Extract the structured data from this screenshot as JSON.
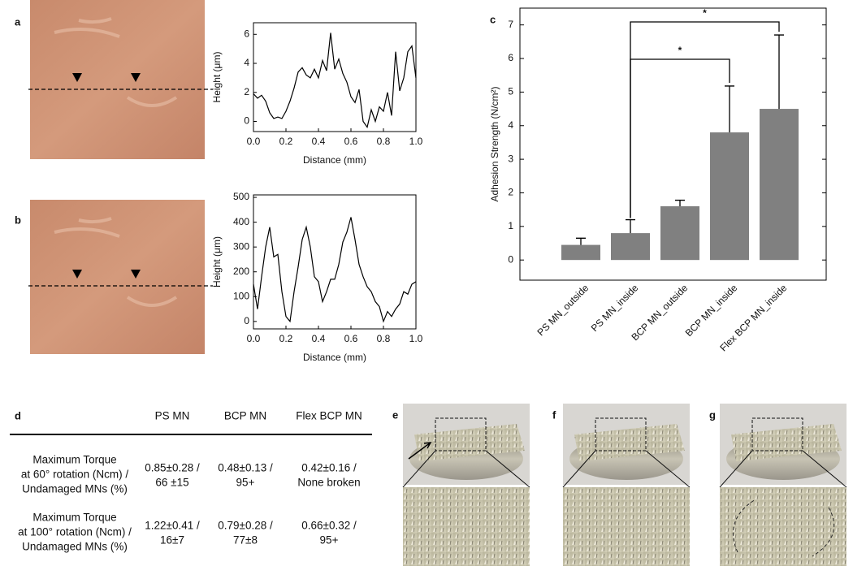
{
  "chart_data": [
    {
      "type": "line",
      "panel_label": "a",
      "xlabel": "Distance (mm)",
      "ylabel": "Height (μm)",
      "color": "#000000",
      "x": [
        0,
        0.025,
        0.05,
        0.075,
        0.1,
        0.125,
        0.15,
        0.175,
        0.2,
        0.225,
        0.25,
        0.275,
        0.3,
        0.325,
        0.35,
        0.375,
        0.4,
        0.425,
        0.45,
        0.475,
        0.5,
        0.525,
        0.55,
        0.575,
        0.6,
        0.625,
        0.65,
        0.675,
        0.7,
        0.725,
        0.75,
        0.775,
        0.8,
        0.825,
        0.85,
        0.875,
        0.9,
        0.925,
        0.95,
        0.975,
        1.0
      ],
      "values": [
        1.9,
        1.6,
        1.8,
        1.4,
        0.6,
        0.2,
        0.3,
        0.2,
        0.7,
        1.4,
        2.3,
        3.4,
        3.7,
        3.2,
        3.0,
        3.6,
        3.0,
        4.2,
        3.5,
        6.1,
        3.6,
        4.3,
        3.3,
        2.7,
        1.7,
        1.3,
        2.2,
        0.0,
        -0.4,
        0.8,
        0.0,
        1.0,
        0.7,
        2.0,
        0.4,
        4.8,
        2.1,
        3.0,
        4.8,
        5.2,
        3.0
      ],
      "xlim": [
        0,
        1
      ],
      "ylim": [
        -0.7,
        6.8
      ],
      "xticks": [
        {
          "value": 0,
          "label": "0.0"
        },
        {
          "value": 0.2,
          "label": "0.2"
        },
        {
          "value": 0.4,
          "label": "0.4"
        },
        {
          "value": 0.6,
          "label": "0.6"
        },
        {
          "value": 0.8,
          "label": "0.8"
        },
        {
          "value": 1,
          "label": "1.0"
        }
      ],
      "yticks": [
        0,
        2,
        4,
        6
      ]
    },
    {
      "type": "line",
      "panel_label": "b",
      "xlabel": "Distance (mm)",
      "ylabel": "Height (μm)",
      "color": "#000000",
      "x": [
        0,
        0.025,
        0.05,
        0.075,
        0.1,
        0.125,
        0.15,
        0.175,
        0.2,
        0.225,
        0.25,
        0.275,
        0.3,
        0.325,
        0.35,
        0.375,
        0.4,
        0.425,
        0.45,
        0.475,
        0.5,
        0.525,
        0.55,
        0.575,
        0.6,
        0.625,
        0.65,
        0.675,
        0.7,
        0.725,
        0.75,
        0.775,
        0.8,
        0.825,
        0.85,
        0.875,
        0.9,
        0.925,
        0.95,
        0.975,
        1.0
      ],
      "values": [
        150,
        50,
        180,
        300,
        380,
        260,
        270,
        120,
        20,
        0,
        120,
        220,
        330,
        380,
        300,
        180,
        160,
        80,
        120,
        170,
        170,
        230,
        320,
        360,
        420,
        330,
        230,
        180,
        140,
        120,
        80,
        60,
        0,
        40,
        20,
        50,
        70,
        120,
        110,
        150,
        160
      ],
      "xlim": [
        0,
        1
      ],
      "ylim": [
        -30,
        510
      ],
      "xticks": [
        {
          "value": 0,
          "label": "0.0"
        },
        {
          "value": 0.2,
          "label": "0.2"
        },
        {
          "value": 0.4,
          "label": "0.4"
        },
        {
          "value": 0.6,
          "label": "0.6"
        },
        {
          "value": 0.8,
          "label": "0.8"
        },
        {
          "value": 1,
          "label": "1.0"
        }
      ],
      "yticks": [
        0,
        100,
        200,
        300,
        400,
        500
      ]
    },
    {
      "type": "bar",
      "panel_label": "c",
      "ylabel": "Adhesion Strength (N/cm²)",
      "color": "#808080",
      "categories": [
        "PS MN_outside",
        "PS MN_inside",
        "BCP MN_outside",
        "BCP MN_inside",
        "Flex BCP MN_inside"
      ],
      "values": [
        0.45,
        0.8,
        1.6,
        3.8,
        4.5
      ],
      "errors": [
        0.2,
        0.4,
        0.18,
        1.38,
        2.2
      ],
      "ylim": [
        -0.6,
        7.5
      ],
      "yticks": [
        0,
        1,
        2,
        3,
        4,
        5,
        6,
        7
      ],
      "annotations": [
        {
          "text": "*",
          "from": 1,
          "to": 3
        },
        {
          "text": "*",
          "from": 1,
          "to": 4
        }
      ]
    }
  ],
  "table": {
    "panel_label": "d",
    "columns": [
      "PS MN",
      "BCP MN",
      "Flex BCP MN"
    ],
    "rows": [
      {
        "label": [
          "Maximum Torque",
          "at 60° rotation (Ncm) /",
          "Undamaged MNs (%)"
        ],
        "cells": [
          [
            "0.85±0.28 /",
            "66 ±15"
          ],
          [
            "0.48±0.13 /",
            "95+"
          ],
          [
            "0.42±0.16 /",
            "None broken"
          ]
        ]
      },
      {
        "label": [
          "Maximum Torque",
          "at 100° rotation (Ncm) /",
          "Undamaged MNs (%)"
        ],
        "cells": [
          [
            "1.22±0.41 /",
            "16±7"
          ],
          [
            "0.79±0.28 /",
            "77±8"
          ],
          [
            "0.66±0.32 /",
            "95+"
          ]
        ]
      }
    ]
  },
  "images": [
    {
      "label": "e"
    },
    {
      "label": "f"
    },
    {
      "label": "g"
    }
  ]
}
